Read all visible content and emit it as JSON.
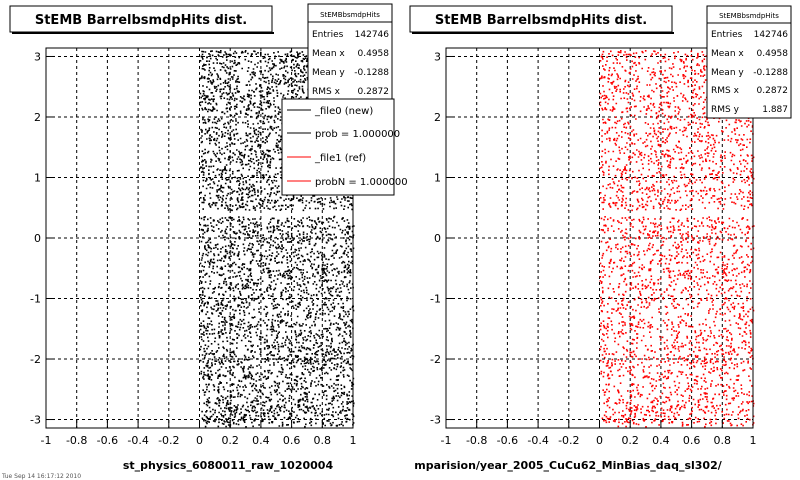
{
  "chart_data": [
    {
      "type": "heatmap",
      "title": "StEMB BarrelbsmdpHits dist.",
      "xlabel": "st_physics_6080011_raw_1020004",
      "ylabel": "",
      "xlim": [
        -1,
        1
      ],
      "ylim": [
        -3.14,
        3.14
      ],
      "x_ticks": [
        "-1",
        "-0.8",
        "-0.6",
        "-0.4",
        "-0.2",
        "0",
        "0.2",
        "0.4",
        "0.6",
        "0.8",
        "1"
      ],
      "y_ticks": [
        "-3",
        "-2",
        "-1",
        "0",
        "1",
        "2",
        "3"
      ],
      "grid": true,
      "color": "#000000",
      "occupied_x_range": [
        0,
        1
      ],
      "stats": {
        "name": "StEMBbsmdpHits",
        "rows": [
          {
            "label": "Entries",
            "value": "142746"
          },
          {
            "label": "Mean x",
            "value": "0.4958"
          },
          {
            "label": "Mean y",
            "value": "-0.1288"
          },
          {
            "label": "RMS x",
            "value": "0.2872"
          }
        ]
      },
      "legend": {
        "placement": "top-right",
        "entries": [
          {
            "label": "_file0 (new)",
            "color": "#000000"
          },
          {
            "label": "prob = 1.000000",
            "color": "#000000"
          },
          {
            "label": "_file1 (ref)",
            "color": "#ff0000"
          },
          {
            "label": "probN = 1.000000",
            "color": "#ff0000"
          }
        ]
      }
    },
    {
      "type": "heatmap",
      "title": "StEMB BarrelbsmdpHits dist.",
      "xlabel": "mparision/year_2005_CuCu62_MinBias_daq_sl302/",
      "ylabel": "",
      "xlim": [
        -1,
        1
      ],
      "ylim": [
        -3.14,
        3.14
      ],
      "x_ticks": [
        "-1",
        "-0.8",
        "-0.6",
        "-0.4",
        "-0.2",
        "0",
        "0.2",
        "0.4",
        "0.6",
        "0.8",
        "1"
      ],
      "y_ticks": [
        "-3",
        "-2",
        "-1",
        "0",
        "1",
        "2",
        "3"
      ],
      "grid": true,
      "color": "#ff0000",
      "occupied_x_range": [
        0,
        1
      ],
      "stats": {
        "name": "StEMBbsmdpHits",
        "rows": [
          {
            "label": "Entries",
            "value": "142746"
          },
          {
            "label": "Mean x",
            "value": "0.4958"
          },
          {
            "label": "Mean y",
            "value": "-0.1288"
          },
          {
            "label": "RMS x",
            "value": "0.2872"
          },
          {
            "label": "RMS y",
            "value": "1.887"
          }
        ]
      }
    }
  ],
  "footer_text": "Tue Sep 14 16:17:12 2010"
}
